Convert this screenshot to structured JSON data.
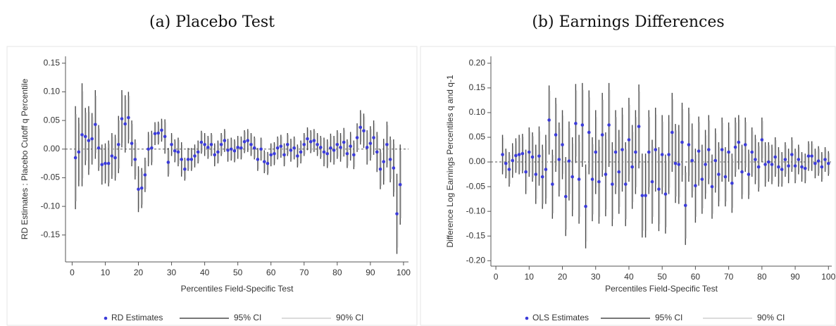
{
  "chart_data": [
    {
      "type": "errorbar",
      "title": "(a) Placebo Test",
      "xlabel": "Percentiles Field-Specific Test",
      "ylabel": "RD Estimates : Placebo Cutoff q Percentile",
      "xlim": [
        -2,
        101.5
      ],
      "ylim": [
        -0.197,
        0.162
      ],
      "xticks": [
        0,
        10,
        20,
        30,
        40,
        50,
        60,
        70,
        80,
        90,
        100
      ],
      "yticks": [
        -0.15,
        {
          "value": -0.1,
          "label": "-0.10"
        },
        -0.05,
        {
          "value": 0,
          "label": "0.00"
        },
        0.05,
        {
          "value": 0.1,
          "label": "0.10"
        },
        0.15
      ],
      "refline": 0,
      "x": [
        1,
        2,
        3,
        4,
        5,
        6,
        7,
        8,
        9,
        10,
        11,
        12,
        13,
        14,
        15,
        16,
        17,
        18,
        19,
        20,
        21,
        22,
        23,
        24,
        25,
        26,
        27,
        28,
        29,
        30,
        31,
        32,
        33,
        34,
        35,
        36,
        37,
        38,
        39,
        40,
        41,
        42,
        43,
        44,
        45,
        46,
        47,
        48,
        49,
        50,
        51,
        52,
        53,
        54,
        55,
        56,
        57,
        58,
        59,
        60,
        61,
        62,
        63,
        64,
        65,
        66,
        67,
        68,
        69,
        70,
        71,
        72,
        73,
        74,
        75,
        76,
        77,
        78,
        79,
        80,
        81,
        82,
        83,
        84,
        85,
        86,
        87,
        88,
        89,
        90,
        91,
        92,
        93,
        94,
        95,
        96,
        97,
        98,
        99
      ],
      "series": [
        {
          "name": "RD Estimates",
          "color": "#3b3bd9",
          "values": [
            -0.015,
            -0.005,
            0.025,
            0.022,
            0.015,
            0.018,
            0.043,
            0.002,
            -0.027,
            -0.025,
            -0.025,
            -0.012,
            -0.015,
            0.008,
            0.053,
            0.044,
            0.055,
            0.01,
            -0.018,
            -0.07,
            -0.068,
            -0.045,
            0,
            0.002,
            0.027,
            0.028,
            0.033,
            0.022,
            -0.023,
            0.008,
            -0.003,
            -0.005,
            -0.018,
            -0.035,
            -0.018,
            -0.018,
            -0.012,
            -0.005,
            0.012,
            0.008,
            0.003,
            0.008,
            -0.01,
            -0.005,
            0.008,
            0.015,
            -0.002,
            0,
            -0.003,
            0.003,
            0.002,
            0.013,
            0.015,
            0.008,
            0.002,
            -0.018,
            0,
            -0.022,
            -0.025,
            -0.01,
            -0.008,
            0.002,
            0.005,
            -0.01,
            0.008,
            -0.002,
            0.002,
            -0.012,
            -0.005,
            0.008,
            0.018,
            0.013,
            0.015,
            0.008,
            0.003,
            -0.005,
            -0.008,
            0.002,
            -0.002,
            0.008,
            0.003,
            0.012,
            -0.008,
            0.005,
            -0.01,
            0.02,
            0.038,
            0.032,
            0.003,
            0.01,
            0.02,
            -0.005,
            -0.035,
            -0.022,
            0.008,
            -0.018,
            -0.033,
            -0.113,
            -0.062
          ]
        },
        {
          "name": "95% CI",
          "color": "#4a4a4a",
          "errors": [
            0.09,
            0.06,
            0.09,
            0.05,
            0.06,
            0.045,
            0.06,
            0.04,
            0.035,
            0.035,
            0.04,
            0.04,
            0.04,
            0.05,
            0.05,
            0.05,
            0.045,
            0.04,
            0.035,
            0.04,
            0.035,
            0.03,
            0.03,
            0.03,
            0.02,
            0.02,
            0.02,
            0.03,
            0.025,
            0.02,
            0.02,
            0.025,
            0.03,
            0.02,
            0.02,
            0.02,
            0.02,
            0.02,
            0.02,
            0.02,
            0.02,
            0.02,
            0.02,
            0.02,
            0.02,
            0.02,
            0.02,
            0.02,
            0.02,
            0.02,
            0.02,
            0.02,
            0.02,
            0.02,
            0.02,
            0.02,
            0.02,
            0.02,
            0.02,
            0.02,
            0.02,
            0.02,
            0.02,
            0.02,
            0.02,
            0.02,
            0.02,
            0.02,
            0.02,
            0.02,
            0.02,
            0.02,
            0.02,
            0.02,
            0.02,
            0.025,
            0.025,
            0.025,
            0.025,
            0.025,
            0.025,
            0.025,
            0.025,
            0.025,
            0.025,
            0.025,
            0.03,
            0.03,
            0.03,
            0.03,
            0.03,
            0.035,
            0.035,
            0.04,
            0.04,
            0.04,
            0.05,
            0.07,
            0.07
          ]
        },
        {
          "name": "90% CI",
          "color": "#cfcfcf",
          "errors": [
            0.076,
            0.05,
            0.076,
            0.042,
            0.05,
            0.038,
            0.05,
            0.034,
            0.029,
            0.029,
            0.034,
            0.034,
            0.034,
            0.042,
            0.042,
            0.042,
            0.038,
            0.034,
            0.029,
            0.034,
            0.029,
            0.025,
            0.025,
            0.025,
            0.017,
            0.017,
            0.017,
            0.025,
            0.021,
            0.017,
            0.017,
            0.021,
            0.025,
            0.017,
            0.017,
            0.017,
            0.017,
            0.017,
            0.017,
            0.017,
            0.017,
            0.017,
            0.017,
            0.017,
            0.017,
            0.017,
            0.017,
            0.017,
            0.017,
            0.017,
            0.017,
            0.017,
            0.017,
            0.017,
            0.017,
            0.017,
            0.017,
            0.017,
            0.017,
            0.017,
            0.017,
            0.017,
            0.017,
            0.017,
            0.017,
            0.017,
            0.017,
            0.017,
            0.017,
            0.017,
            0.017,
            0.017,
            0.017,
            0.017,
            0.017,
            0.021,
            0.021,
            0.021,
            0.021,
            0.021,
            0.021,
            0.021,
            0.021,
            0.021,
            0.021,
            0.021,
            0.025,
            0.025,
            0.025,
            0.025,
            0.025,
            0.029,
            0.029,
            0.034,
            0.034,
            0.034,
            0.042,
            0.059,
            0.059
          ]
        }
      ]
    },
    {
      "type": "errorbar",
      "title": "(b) Earnings Differences",
      "xlabel": "Percentiles Field-Specific Test",
      "ylabel": "Difference Log Earnings Percentiles q and q-1",
      "xlim": [
        -1.5,
        101
      ],
      "ylim": [
        -0.211,
        0.214
      ],
      "xticks": [
        0,
        10,
        20,
        30,
        40,
        50,
        60,
        70,
        80,
        90,
        100
      ],
      "yticks": [
        {
          "value": -0.2,
          "label": "-0.20"
        },
        -0.15,
        {
          "value": -0.1,
          "label": "-0.10"
        },
        -0.05,
        {
          "value": 0,
          "label": "0.00"
        },
        0.05,
        {
          "value": 0.1,
          "label": "0.10"
        },
        0.15,
        {
          "value": 0.2,
          "label": "0.20"
        }
      ],
      "refline": 0,
      "x": [
        2,
        3,
        4,
        5,
        6,
        7,
        8,
        9,
        10,
        11,
        12,
        13,
        14,
        15,
        16,
        17,
        18,
        19,
        20,
        21,
        22,
        23,
        24,
        25,
        26,
        27,
        28,
        29,
        30,
        31,
        32,
        33,
        34,
        35,
        36,
        37,
        38,
        39,
        40,
        41,
        42,
        43,
        44,
        45,
        46,
        47,
        48,
        49,
        50,
        51,
        52,
        53,
        54,
        55,
        56,
        57,
        58,
        59,
        60,
        61,
        62,
        63,
        64,
        65,
        66,
        67,
        68,
        69,
        70,
        71,
        72,
        73,
        74,
        75,
        76,
        77,
        78,
        79,
        80,
        81,
        82,
        83,
        84,
        85,
        86,
        87,
        88,
        89,
        90,
        91,
        92,
        93,
        94,
        95,
        96,
        97,
        98,
        99,
        100
      ],
      "series": [
        {
          "name": "OLS Estimates",
          "color": "#3b3bd9",
          "values": [
            0.015,
            -0.003,
            -0.015,
            0.003,
            0.013,
            0.015,
            0.017,
            -0.02,
            0.02,
            0.01,
            -0.025,
            0.012,
            -0.03,
            -0.015,
            0.085,
            -0.045,
            0.055,
            0.005,
            0.035,
            -0.07,
            0.002,
            -0.03,
            0.078,
            -0.035,
            0.075,
            -0.09,
            0.06,
            -0.035,
            0.02,
            -0.04,
            0.055,
            -0.025,
            0.075,
            -0.045,
            0.02,
            -0.02,
            0.025,
            -0.045,
            0.045,
            -0.01,
            0.02,
            0.072,
            -0.068,
            -0.068,
            0.02,
            -0.04,
            0.025,
            -0.055,
            0.015,
            -0.065,
            0.015,
            0.06,
            -0.003,
            -0.005,
            0.04,
            -0.088,
            0.035,
            0.003,
            -0.048,
            0.022,
            -0.035,
            -0.005,
            0.025,
            -0.05,
            0.003,
            -0.025,
            0.025,
            -0.03,
            0.02,
            -0.043,
            0.03,
            0.04,
            -0.02,
            0.035,
            -0.025,
            0.02,
            0.005,
            -0.01,
            0.045,
            -0.005,
            0,
            -0.005,
            0.01,
            -0.01,
            -0.015,
            0.005,
            -0.008,
            0.015,
            -0.008,
            0.005,
            -0.01,
            -0.013,
            0.012,
            0.012,
            -0.003,
            0.002,
            -0.01,
            0.005,
            -0.003
          ]
        },
        {
          "name": "95% CI",
          "color": "#4a4a4a",
          "errors": [
            0.04,
            0.03,
            0.035,
            0.035,
            0.035,
            0.04,
            0.04,
            0.045,
            0.05,
            0.05,
            0.06,
            0.06,
            0.065,
            0.07,
            0.07,
            0.07,
            0.075,
            0.075,
            0.07,
            0.08,
            0.08,
            0.08,
            0.08,
            0.09,
            0.085,
            0.085,
            0.085,
            0.085,
            0.085,
            0.085,
            0.085,
            0.085,
            0.085,
            0.085,
            0.085,
            0.085,
            0.085,
            0.085,
            0.085,
            0.085,
            0.085,
            0.085,
            0.085,
            0.085,
            0.085,
            0.085,
            0.085,
            0.085,
            0.08,
            0.08,
            0.08,
            0.08,
            0.08,
            0.08,
            0.08,
            0.08,
            0.075,
            0.075,
            0.075,
            0.07,
            0.07,
            0.07,
            0.07,
            0.065,
            0.065,
            0.065,
            0.065,
            0.06,
            0.06,
            0.06,
            0.06,
            0.055,
            0.055,
            0.055,
            0.05,
            0.05,
            0.05,
            0.05,
            0.045,
            0.045,
            0.04,
            0.04,
            0.04,
            0.04,
            0.035,
            0.035,
            0.035,
            0.035,
            0.035,
            0.03,
            0.03,
            0.03,
            0.03,
            0.03,
            0.03,
            0.03,
            0.03,
            0.025,
            0.025
          ]
        },
        {
          "name": "90% CI",
          "color": "#cfcfcf",
          "errors": [
            0.034,
            0.025,
            0.029,
            0.029,
            0.029,
            0.034,
            0.034,
            0.038,
            0.042,
            0.042,
            0.05,
            0.05,
            0.055,
            0.059,
            0.059,
            0.059,
            0.063,
            0.063,
            0.059,
            0.067,
            0.067,
            0.067,
            0.067,
            0.076,
            0.071,
            0.071,
            0.071,
            0.071,
            0.071,
            0.071,
            0.071,
            0.071,
            0.071,
            0.071,
            0.071,
            0.071,
            0.071,
            0.071,
            0.071,
            0.071,
            0.071,
            0.071,
            0.071,
            0.071,
            0.071,
            0.071,
            0.071,
            0.071,
            0.067,
            0.067,
            0.067,
            0.067,
            0.067,
            0.067,
            0.067,
            0.067,
            0.063,
            0.063,
            0.063,
            0.059,
            0.059,
            0.059,
            0.059,
            0.055,
            0.055,
            0.055,
            0.055,
            0.05,
            0.05,
            0.05,
            0.05,
            0.046,
            0.046,
            0.046,
            0.042,
            0.042,
            0.042,
            0.042,
            0.038,
            0.038,
            0.034,
            0.034,
            0.034,
            0.034,
            0.029,
            0.029,
            0.029,
            0.029,
            0.029,
            0.025,
            0.025,
            0.025,
            0.025,
            0.025,
            0.025,
            0.025,
            0.025,
            0.021,
            0.021
          ]
        }
      ]
    }
  ]
}
